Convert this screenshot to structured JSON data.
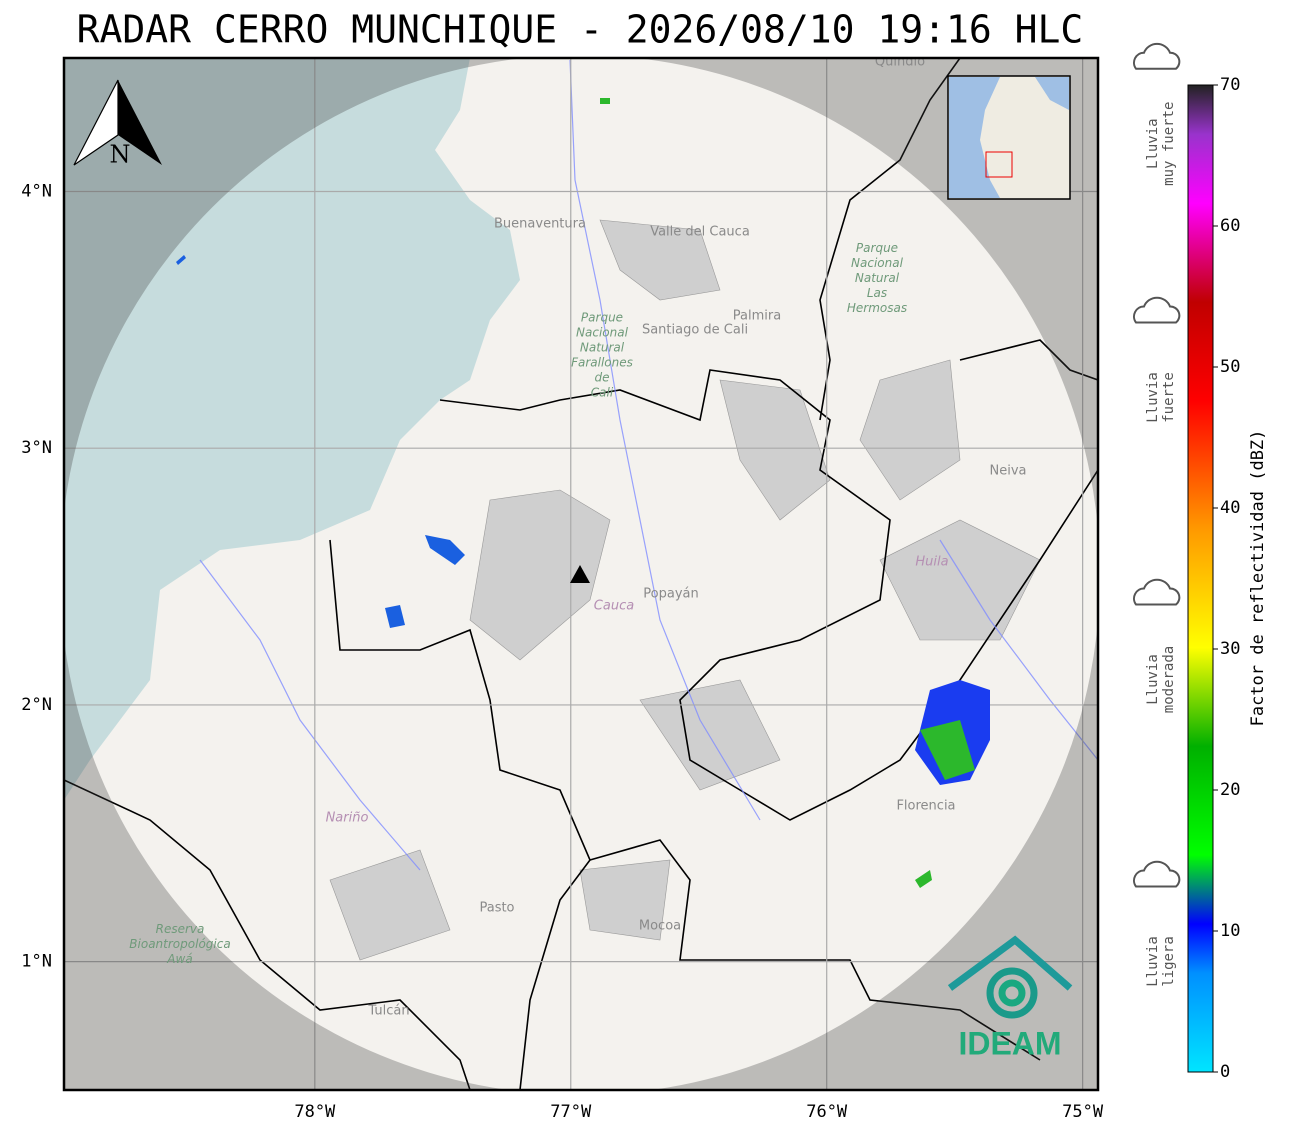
{
  "title": "RADAR CERRO MUNCHIQUE - 2026/08/10 19:16 HLC",
  "map": {
    "xlim": [
      -78.98,
      -74.94
    ],
    "ylim": [
      0.5,
      4.52
    ],
    "xticks": [
      {
        "value": -78,
        "label": "78°W"
      },
      {
        "value": -77,
        "label": "77°W"
      },
      {
        "value": -76,
        "label": "76°W"
      },
      {
        "value": -75,
        "label": "75°W"
      }
    ],
    "yticks": [
      {
        "value": 1,
        "label": "1°N"
      },
      {
        "value": 2,
        "label": "2°N"
      },
      {
        "value": 3,
        "label": "3°N"
      },
      {
        "value": 4,
        "label": "4°N"
      }
    ]
  },
  "colorbar": {
    "label": "Factor de reflectividad (dBZ)",
    "lim": [
      0,
      70
    ],
    "ticks": [
      0,
      10,
      20,
      30,
      40,
      50,
      60,
      70
    ]
  },
  "rain_levels": [
    {
      "lines": [
        "Lluvia",
        "ligera"
      ],
      "value": 5
    },
    {
      "lines": [
        "Lluvia",
        "moderada"
      ],
      "value": 25
    },
    {
      "lines": [
        "Lluvia",
        "fuerte"
      ],
      "value": 45
    },
    {
      "lines": [
        "Lluvia",
        "muy fuerte"
      ],
      "value": 63
    }
  ],
  "places": [
    "Buenaventura",
    "Valle del Cauca",
    "Santiago de Cali",
    "Palmira",
    "Neiva",
    "Popayán",
    "Florencia",
    "Pasto",
    "Mocoa",
    "Tulcán",
    "Quindío"
  ],
  "departments": [
    "Cauca",
    "Huila",
    "Nariño"
  ],
  "parks": [
    "Parque Nacional Natural Farallones de Cali",
    "Parque Nacional Natural Las Hermosas",
    "Reserva Bioantropológica Awá"
  ],
  "north_label": "N",
  "logo": "IDEAM"
}
